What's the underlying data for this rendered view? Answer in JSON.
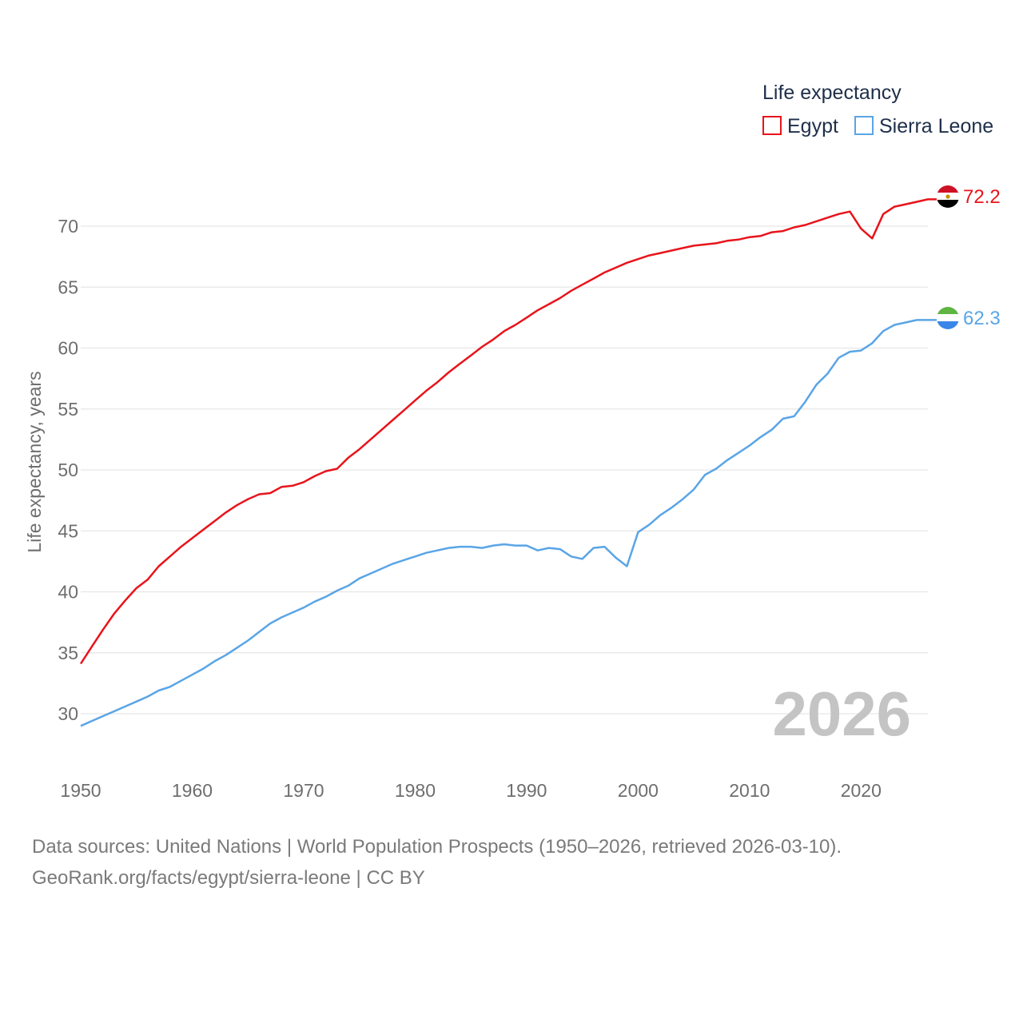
{
  "chart_data": {
    "type": "line",
    "legend_title": "Life expectancy",
    "ylabel": "Life expectancy, years",
    "xlim": [
      1950,
      2026
    ],
    "ylim": [
      27,
      73
    ],
    "yticks": [
      30,
      35,
      40,
      45,
      50,
      55,
      60,
      65,
      70
    ],
    "xticks": [
      1950,
      1960,
      1970,
      1980,
      1990,
      2000,
      2010,
      2020
    ],
    "year_label": "2026",
    "legend_position": "top-right",
    "grid": true,
    "series": [
      {
        "name": "Egypt",
        "color": "#e8141b",
        "end_label": "72.2",
        "x": [
          1950,
          1951,
          1952,
          1953,
          1954,
          1955,
          1956,
          1957,
          1958,
          1959,
          1960,
          1961,
          1962,
          1963,
          1964,
          1965,
          1966,
          1967,
          1968,
          1969,
          1970,
          1971,
          1972,
          1973,
          1974,
          1975,
          1976,
          1977,
          1978,
          1979,
          1980,
          1981,
          1982,
          1983,
          1984,
          1985,
          1986,
          1987,
          1988,
          1989,
          1990,
          1991,
          1992,
          1993,
          1994,
          1995,
          1996,
          1997,
          1998,
          1999,
          2000,
          2001,
          2002,
          2003,
          2004,
          2005,
          2006,
          2007,
          2008,
          2009,
          2010,
          2011,
          2012,
          2013,
          2014,
          2015,
          2016,
          2017,
          2018,
          2019,
          2020,
          2021,
          2022,
          2023,
          2024,
          2025,
          2026
        ],
        "y": [
          34.1,
          35.5,
          36.9,
          38.2,
          39.3,
          40.3,
          41.0,
          42.1,
          42.9,
          43.7,
          44.4,
          45.1,
          45.8,
          46.5,
          47.1,
          47.6,
          48.0,
          48.1,
          48.6,
          48.7,
          49.0,
          49.5,
          49.9,
          50.1,
          51.0,
          51.7,
          52.5,
          53.3,
          54.1,
          54.9,
          55.7,
          56.5,
          57.2,
          58.0,
          58.7,
          59.4,
          60.1,
          60.7,
          61.4,
          61.9,
          62.5,
          63.1,
          63.6,
          64.1,
          64.7,
          65.2,
          65.7,
          66.2,
          66.6,
          67.0,
          67.3,
          67.6,
          67.8,
          68.0,
          68.2,
          68.4,
          68.5,
          68.6,
          68.8,
          68.9,
          69.1,
          69.2,
          69.5,
          69.6,
          69.9,
          70.1,
          70.4,
          70.7,
          71.0,
          71.2,
          69.8,
          69.0,
          71.0,
          71.6,
          71.8,
          72.0,
          72.2
        ]
      },
      {
        "name": "Sierra Leone",
        "color": "#5aa5e6",
        "end_label": "62.3",
        "x": [
          1950,
          1951,
          1952,
          1953,
          1954,
          1955,
          1956,
          1957,
          1958,
          1959,
          1960,
          1961,
          1962,
          1963,
          1964,
          1965,
          1966,
          1967,
          1968,
          1969,
          1970,
          1971,
          1972,
          1973,
          1974,
          1975,
          1976,
          1977,
          1978,
          1979,
          1980,
          1981,
          1982,
          1983,
          1984,
          1985,
          1986,
          1987,
          1988,
          1989,
          1990,
          1991,
          1992,
          1993,
          1994,
          1995,
          1996,
          1997,
          1998,
          1999,
          2000,
          2001,
          2002,
          2003,
          2004,
          2005,
          2006,
          2007,
          2008,
          2009,
          2010,
          2011,
          2012,
          2013,
          2014,
          2015,
          2016,
          2017,
          2018,
          2019,
          2020,
          2021,
          2022,
          2023,
          2024,
          2025,
          2026
        ],
        "y": [
          29.0,
          29.4,
          29.8,
          30.2,
          30.6,
          31.0,
          31.4,
          31.9,
          32.2,
          32.7,
          33.2,
          33.7,
          34.3,
          34.8,
          35.4,
          36.0,
          36.7,
          37.4,
          37.9,
          38.3,
          38.7,
          39.2,
          39.6,
          40.1,
          40.5,
          41.1,
          41.5,
          41.9,
          42.3,
          42.6,
          42.9,
          43.2,
          43.4,
          43.6,
          43.7,
          43.7,
          43.6,
          43.8,
          43.9,
          43.8,
          43.8,
          43.4,
          43.6,
          43.5,
          42.9,
          42.7,
          43.6,
          43.7,
          42.8,
          42.1,
          44.9,
          45.5,
          46.3,
          46.9,
          47.6,
          48.4,
          49.6,
          50.1,
          50.8,
          51.4,
          52.0,
          52.7,
          53.3,
          54.2,
          54.4,
          55.6,
          57.0,
          57.9,
          59.2,
          59.7,
          59.8,
          60.4,
          61.4,
          61.9,
          62.1,
          62.3,
          62.3
        ]
      }
    ]
  },
  "source": {
    "line1": "Data sources: United Nations | World Population Prospects (1950–2026, retrieved 2026-03-10).",
    "line2": "GeoRank.org/facts/egypt/sierra-leone | CC BY"
  }
}
